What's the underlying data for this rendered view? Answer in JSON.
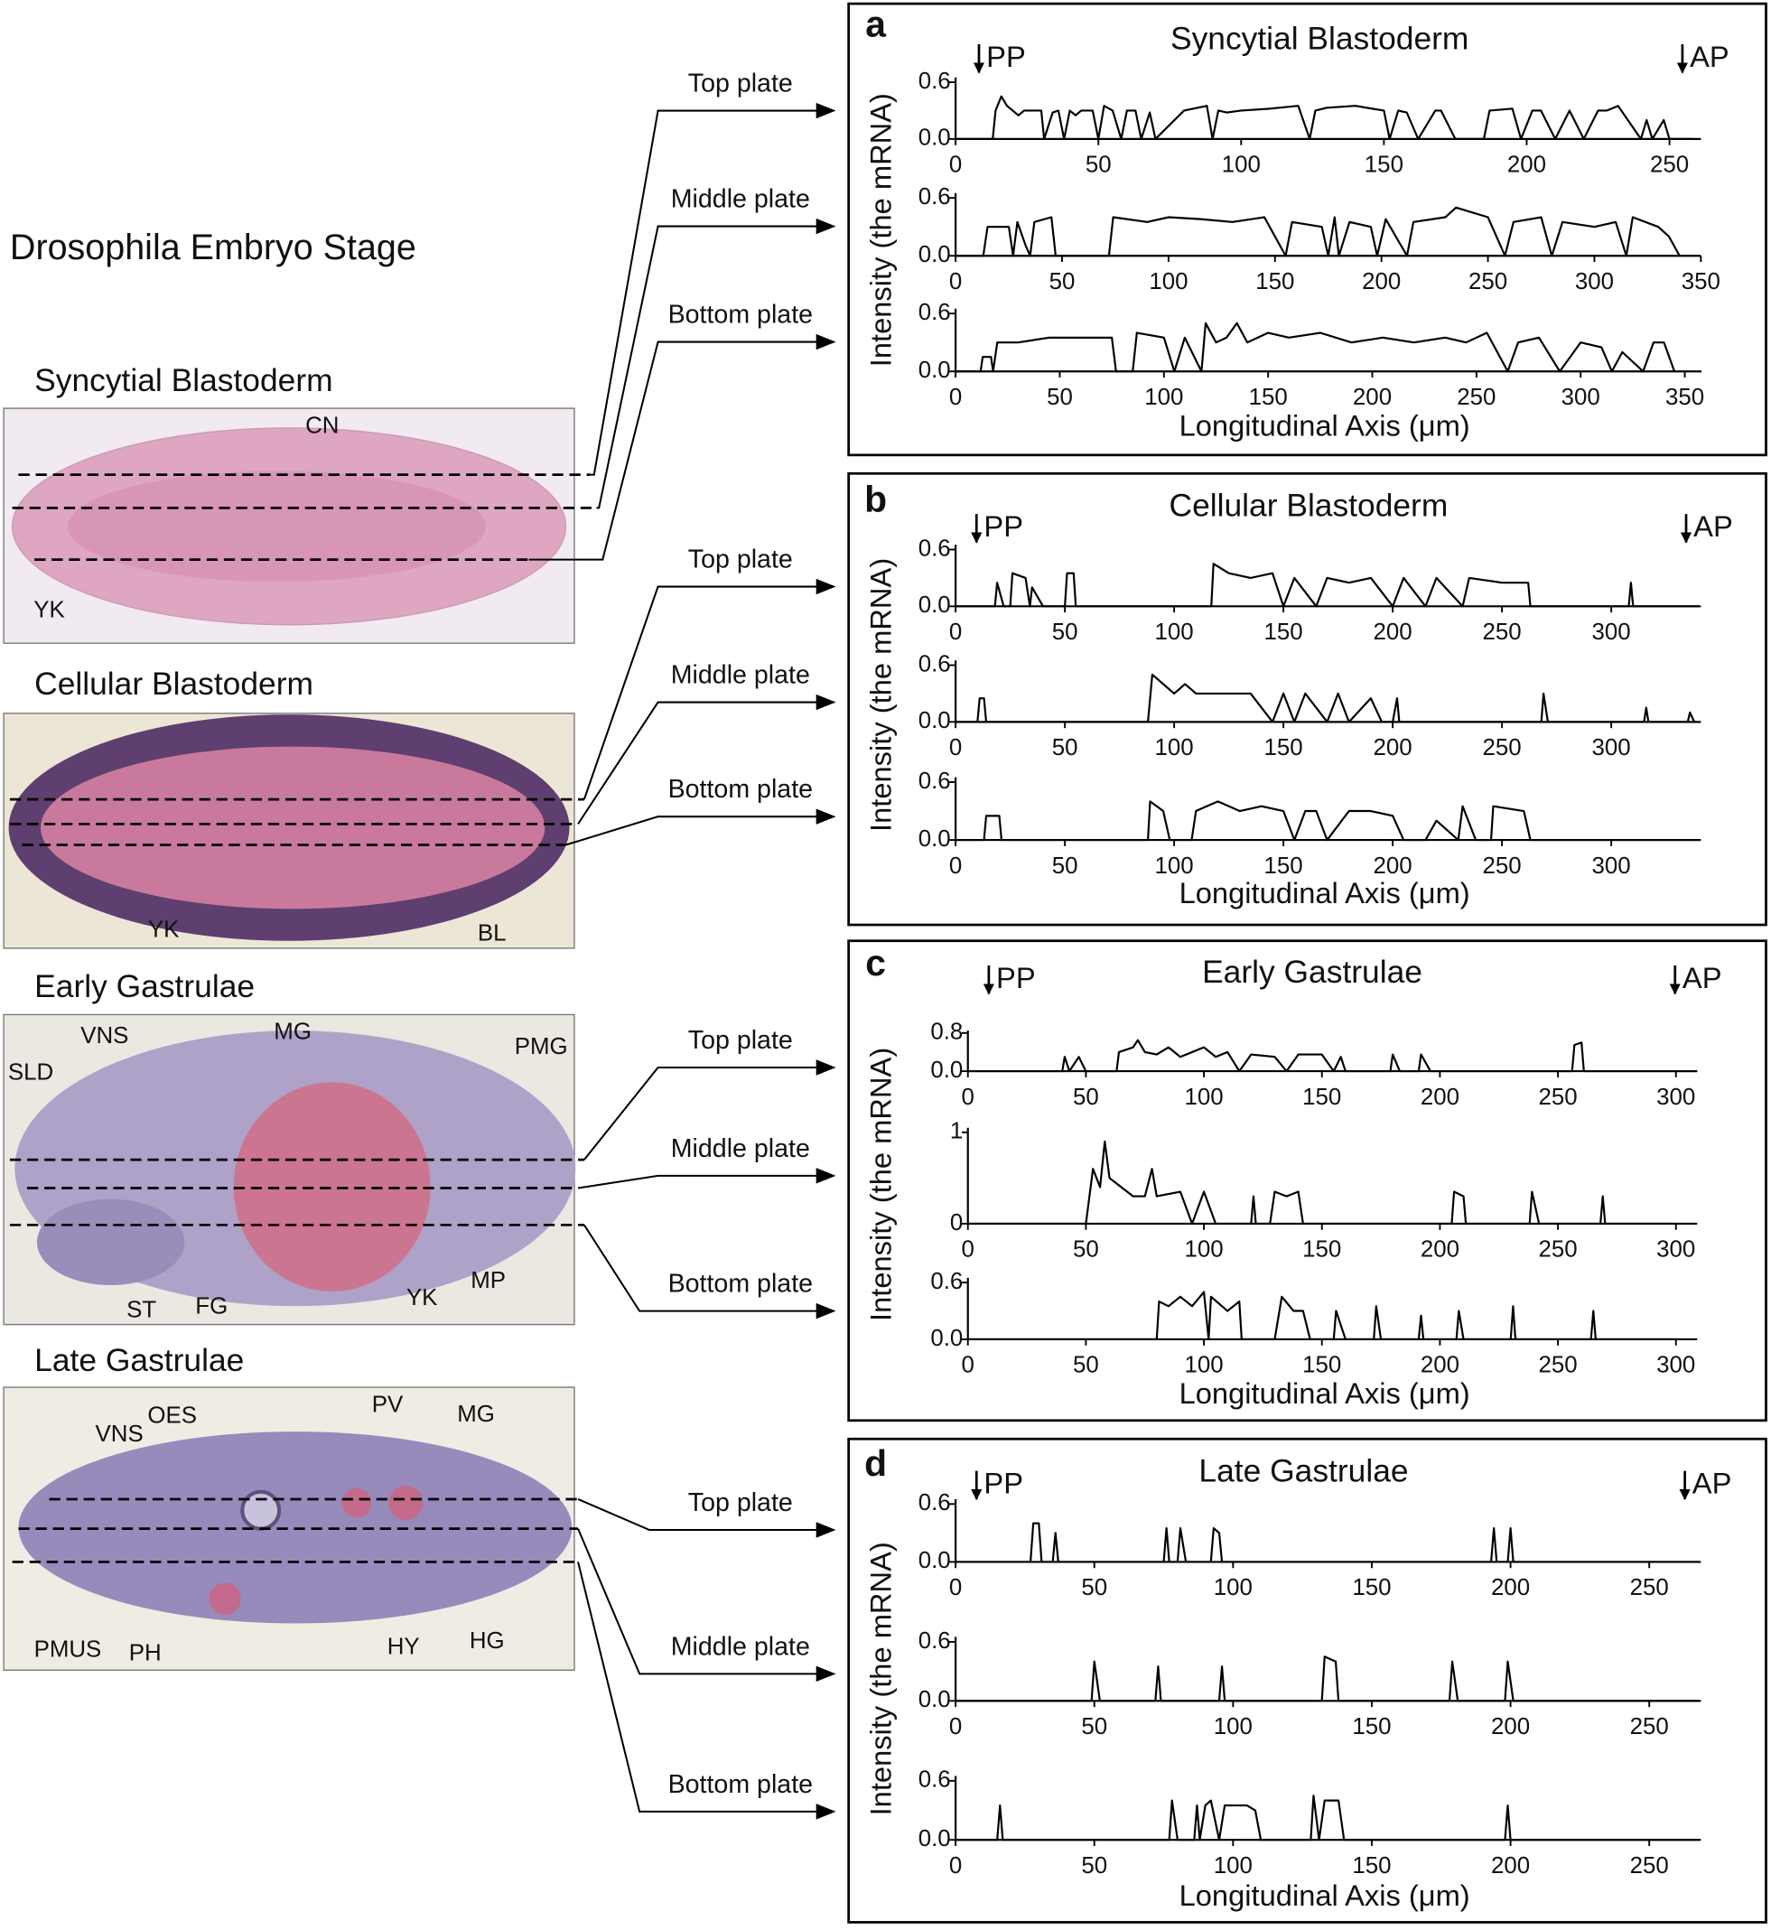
{
  "figure_title": "Drosophila Embryo Stage",
  "stages": [
    {
      "name": "Syncytial Blastoderm",
      "labels": [
        "CN",
        "YK"
      ],
      "plates": [
        "Top plate",
        "Middle plate",
        "Bottom plate"
      ]
    },
    {
      "name": "Cellular Blastoderm",
      "labels": [
        "YK",
        "BL"
      ],
      "plates": [
        "Top plate",
        "Middle plate",
        "Bottom plate"
      ]
    },
    {
      "name": "Early Gastrulae",
      "labels": [
        "VNS",
        "MG",
        "PMG",
        "SLD",
        "ST",
        "FG",
        "YK",
        "MP"
      ],
      "plates": [
        "Top plate",
        "Middle plate",
        "Bottom plate"
      ]
    },
    {
      "name": "Late Gastrulae",
      "labels": [
        "VNS",
        "OES",
        "PV",
        "MG",
        "PMUS",
        "PH",
        "HY",
        "HG"
      ],
      "plates": [
        "Top plate",
        "Middle plate",
        "Bottom plate"
      ]
    }
  ],
  "panels": [
    {
      "letter": "a",
      "title": "Syncytial Blastoderm",
      "left_marker": "PP",
      "right_marker": "AP",
      "ylabel": "Intensity (the mRNA)",
      "xlabel": "Longitudinal Axis (μm)"
    },
    {
      "letter": "b",
      "title": "Cellular Blastoderm",
      "left_marker": "PP",
      "right_marker": "AP",
      "ylabel": "Intensity (the mRNA)",
      "xlabel": "Longitudinal Axis (μm)"
    },
    {
      "letter": "c",
      "title": "Early Gastrulae",
      "left_marker": "PP",
      "right_marker": "AP",
      "ylabel": "Intensity (the mRNA)",
      "xlabel": "Longitudinal Axis (μm)"
    },
    {
      "letter": "d",
      "title": "Late Gastrulae",
      "left_marker": "PP",
      "right_marker": "AP",
      "ylabel": "Intensity (the mRNA)",
      "xlabel": "Longitudinal Axis (μm)"
    }
  ],
  "chart_data": [
    {
      "type": "line",
      "color": "#000000",
      "xlim": [
        0,
        261
      ],
      "ylim": [
        0,
        0.65
      ],
      "xticks": [
        0,
        50,
        100,
        150,
        200,
        250
      ],
      "yticks": [
        {
          "value": 0,
          "label": "0.0"
        },
        0.6
      ],
      "x": [
        0,
        13,
        14,
        16,
        18,
        22,
        24,
        30,
        31,
        34,
        36,
        38,
        40,
        42,
        44,
        48,
        50,
        52,
        55,
        58,
        60,
        63,
        65,
        68,
        70,
        80,
        88,
        90,
        92,
        95,
        100,
        110,
        120,
        124,
        126,
        130,
        140,
        150,
        152,
        155,
        158,
        162,
        168,
        170,
        175,
        185,
        187,
        195,
        198,
        202,
        205,
        210,
        215,
        220,
        225,
        228,
        232,
        240,
        242,
        244,
        248,
        250,
        258
      ],
      "values": [
        0,
        0,
        0.3,
        0.45,
        0.35,
        0.25,
        0.3,
        0.3,
        0,
        0.28,
        0.3,
        0,
        0.3,
        0.25,
        0.3,
        0.3,
        0,
        0.35,
        0.3,
        0,
        0.3,
        0.3,
        0,
        0.28,
        0,
        0.3,
        0.35,
        0,
        0.3,
        0.28,
        0.3,
        0.32,
        0.35,
        0,
        0.3,
        0.33,
        0.35,
        0.3,
        0,
        0.3,
        0.28,
        0,
        0.3,
        0.3,
        0,
        0,
        0.3,
        0.32,
        0,
        0.3,
        0.3,
        0,
        0.3,
        0,
        0.3,
        0.3,
        0.35,
        0,
        0.2,
        0,
        0.2,
        0,
        0
      ]
    },
    {
      "type": "line",
      "color": "#000000",
      "xlim": [
        0,
        350
      ],
      "ylim": [
        0,
        0.65
      ],
      "xticks": [
        0,
        50,
        100,
        150,
        200,
        250,
        300,
        350
      ],
      "yticks": [
        {
          "value": 0,
          "label": "0.0"
        },
        0.6
      ],
      "x": [
        0,
        13,
        15,
        25,
        27,
        29,
        33,
        35,
        37,
        45,
        47,
        72,
        74,
        90,
        100,
        115,
        130,
        145,
        155,
        158,
        172,
        175,
        178,
        180,
        185,
        195,
        198,
        202,
        212,
        215,
        230,
        235,
        250,
        258,
        262,
        275,
        280,
        285,
        300,
        310,
        315,
        318,
        330,
        335,
        340
      ],
      "values": [
        0,
        0,
        0.3,
        0.3,
        0,
        0.35,
        0.1,
        0,
        0.35,
        0.4,
        0,
        0,
        0.4,
        0.35,
        0.4,
        0.38,
        0.35,
        0.4,
        0,
        0.35,
        0.3,
        0,
        0.4,
        0,
        0.35,
        0.3,
        0,
        0.38,
        0,
        0.35,
        0.4,
        0.5,
        0.4,
        0,
        0.35,
        0.4,
        0,
        0.35,
        0.3,
        0.35,
        0,
        0.4,
        0.3,
        0.2,
        0
      ]
    },
    {
      "type": "line",
      "color": "#000000",
      "xlim": [
        0,
        358
      ],
      "ylim": [
        0,
        0.65
      ],
      "xticks": [
        0,
        50,
        100,
        150,
        200,
        250,
        300,
        350
      ],
      "yticks": [
        {
          "value": 0,
          "label": "0.0"
        },
        0.6
      ],
      "x": [
        0,
        12,
        13,
        17,
        18,
        20,
        30,
        45,
        60,
        75,
        77,
        85,
        87,
        100,
        105,
        110,
        118,
        120,
        125,
        130,
        135,
        140,
        150,
        160,
        175,
        190,
        205,
        220,
        235,
        245,
        255,
        265,
        270,
        280,
        290,
        300,
        310,
        315,
        320,
        330,
        335,
        340,
        345
      ],
      "values": [
        0,
        0,
        0.15,
        0.15,
        0,
        0.3,
        0.3,
        0.35,
        0.35,
        0.35,
        0,
        0,
        0.4,
        0.35,
        0,
        0.35,
        0,
        0.5,
        0.3,
        0.35,
        0.5,
        0.3,
        0.4,
        0.35,
        0.4,
        0.3,
        0.35,
        0.3,
        0.35,
        0.3,
        0.4,
        0,
        0.3,
        0.35,
        0,
        0.3,
        0.25,
        0,
        0.2,
        0,
        0.3,
        0.3,
        0
      ]
    },
    {
      "type": "line",
      "color": "#000000",
      "xlim": [
        0,
        341
      ],
      "ylim": [
        0,
        0.65
      ],
      "xticks": [
        0,
        50,
        100,
        150,
        200,
        250,
        300
      ],
      "yticks": [
        {
          "value": 0,
          "label": "0.0"
        },
        0.6
      ],
      "x": [
        0,
        18,
        19,
        22,
        25,
        26,
        32,
        34,
        35,
        40,
        50,
        51,
        54,
        55,
        117,
        118,
        125,
        135,
        145,
        150,
        155,
        165,
        170,
        180,
        190,
        200,
        205,
        215,
        220,
        232,
        235,
        250,
        262,
        263,
        308,
        309,
        310,
        340
      ],
      "values": [
        0,
        0,
        0.25,
        0,
        0,
        0.35,
        0.3,
        0,
        0.2,
        0,
        0,
        0.35,
        0.35,
        0,
        0,
        0.45,
        0.35,
        0.3,
        0.35,
        0,
        0.3,
        0,
        0.3,
        0.25,
        0.3,
        0,
        0.3,
        0,
        0.3,
        0,
        0.3,
        0.25,
        0.25,
        0,
        0,
        0.25,
        0,
        0
      ]
    },
    {
      "type": "line",
      "color": "#000000",
      "xlim": [
        0,
        341
      ],
      "ylim": [
        0,
        0.65
      ],
      "xticks": [
        0,
        50,
        100,
        150,
        200,
        250,
        300
      ],
      "yticks": [
        {
          "value": 0,
          "label": "0.0"
        },
        0.6
      ],
      "x": [
        0,
        10,
        11,
        13,
        14,
        88,
        90,
        95,
        100,
        105,
        110,
        120,
        135,
        145,
        150,
        155,
        160,
        170,
        175,
        180,
        190,
        195,
        200,
        202,
        203,
        268,
        269,
        271,
        315,
        316,
        317,
        335,
        336,
        338
      ],
      "values": [
        0,
        0,
        0.25,
        0.25,
        0,
        0,
        0.5,
        0.4,
        0.3,
        0.4,
        0.3,
        0.3,
        0.3,
        0,
        0.3,
        0,
        0.3,
        0,
        0.3,
        0,
        0.25,
        0,
        0,
        0.25,
        0,
        0,
        0.3,
        0,
        0,
        0.15,
        0,
        0,
        0.1,
        0
      ]
    },
    {
      "type": "line",
      "color": "#000000",
      "xlim": [
        0,
        341
      ],
      "ylim": [
        0,
        0.65
      ],
      "xticks": [
        0,
        50,
        100,
        150,
        200,
        250,
        300
      ],
      "yticks": [
        {
          "value": 0,
          "label": "0.0"
        },
        0.6
      ],
      "x": [
        0,
        13,
        14,
        20,
        21,
        88,
        89,
        95,
        98,
        108,
        110,
        115,
        120,
        130,
        140,
        150,
        155,
        160,
        165,
        170,
        180,
        190,
        200,
        205,
        215,
        220,
        230,
        232,
        238,
        245,
        246,
        260,
        263,
        340
      ],
      "values": [
        0,
        0,
        0.25,
        0.25,
        0,
        0,
        0.4,
        0.3,
        0,
        0,
        0.3,
        0.35,
        0.4,
        0.3,
        0.35,
        0.3,
        0,
        0.3,
        0.3,
        0,
        0.3,
        0.3,
        0.25,
        0,
        0,
        0.2,
        0,
        0.35,
        0,
        0,
        0.35,
        0.3,
        0,
        0
      ]
    },
    {
      "type": "line",
      "color": "#000000",
      "xlim": [
        0,
        309
      ],
      "ylim": [
        0,
        0.85
      ],
      "xticks": [
        0,
        50,
        100,
        150,
        200,
        250,
        300
      ],
      "yticks": [
        {
          "value": 0,
          "label": "0.0"
        },
        0.8
      ],
      "x": [
        0,
        40,
        41,
        43,
        47,
        50,
        63,
        64,
        70,
        72,
        75,
        80,
        85,
        90,
        95,
        100,
        105,
        110,
        115,
        120,
        130,
        135,
        140,
        150,
        155,
        158,
        160,
        179,
        180,
        183,
        191,
        192,
        196,
        256,
        257,
        260,
        261,
        309
      ],
      "values": [
        0,
        0,
        0.3,
        0,
        0.3,
        0,
        0,
        0.4,
        0.5,
        0.65,
        0.4,
        0.35,
        0.5,
        0.3,
        0.4,
        0.5,
        0.3,
        0.4,
        0,
        0.35,
        0.3,
        0,
        0.35,
        0.35,
        0,
        0.3,
        0,
        0,
        0.35,
        0,
        0,
        0.35,
        0,
        0,
        0.55,
        0.6,
        0,
        0
      ]
    },
    {
      "type": "line",
      "color": "#000000",
      "xlim": [
        0,
        309
      ],
      "ylim": [
        0,
        1.05
      ],
      "xticks": [
        0,
        50,
        100,
        150,
        200,
        250,
        300
      ],
      "yticks": [
        0,
        1
      ],
      "x": [
        0,
        50,
        53,
        56,
        58,
        60,
        65,
        70,
        75,
        78,
        80,
        90,
        95,
        100,
        105,
        120,
        121,
        122,
        128,
        130,
        135,
        140,
        142,
        205,
        206,
        210,
        211,
        238,
        239,
        242,
        268,
        269,
        270,
        300
      ],
      "values": [
        0,
        0,
        0.6,
        0.4,
        0.9,
        0.5,
        0.4,
        0.3,
        0.3,
        0.6,
        0.3,
        0.35,
        0,
        0.35,
        0,
        0,
        0.3,
        0,
        0,
        0.35,
        0.3,
        0.35,
        0,
        0,
        0.35,
        0.3,
        0,
        0,
        0.35,
        0,
        0,
        0.3,
        0,
        0
      ]
    },
    {
      "type": "line",
      "color": "#000000",
      "xlim": [
        0,
        309
      ],
      "ylim": [
        0,
        0.65
      ],
      "xticks": [
        0,
        50,
        100,
        150,
        200,
        250,
        300
      ],
      "yticks": [
        {
          "value": 0,
          "label": "0.0"
        },
        0.6
      ],
      "x": [
        0,
        80,
        81,
        85,
        90,
        95,
        100,
        102,
        103,
        110,
        115,
        116,
        130,
        133,
        138,
        142,
        145,
        155,
        156,
        160,
        172,
        173,
        175,
        191,
        192,
        193,
        207,
        208,
        210,
        230,
        231,
        232,
        264,
        265,
        266,
        300
      ],
      "values": [
        0,
        0,
        0.4,
        0.35,
        0.45,
        0.35,
        0.5,
        0,
        0.45,
        0.3,
        0.4,
        0,
        0,
        0.45,
        0.3,
        0.3,
        0,
        0,
        0.3,
        0,
        0,
        0.35,
        0,
        0,
        0.25,
        0,
        0,
        0.3,
        0,
        0,
        0.35,
        0,
        0,
        0.3,
        0,
        0
      ]
    },
    {
      "type": "line",
      "color": "#000000",
      "xlim": [
        0,
        268.6
      ],
      "ylim": [
        0,
        0.65
      ],
      "xticks": [
        0,
        50,
        100,
        150,
        200,
        250
      ],
      "yticks": [
        {
          "value": 0,
          "label": "0.0"
        },
        0.6
      ],
      "x": [
        0,
        27,
        28,
        30,
        31,
        35,
        36,
        37,
        75,
        76,
        77,
        80,
        81,
        83,
        92,
        93,
        95,
        96,
        193,
        194,
        195,
        199,
        200,
        201,
        268
      ],
      "values": [
        0,
        0,
        0.4,
        0.4,
        0,
        0,
        0.3,
        0,
        0,
        0.35,
        0,
        0,
        0.35,
        0,
        0,
        0.35,
        0.3,
        0,
        0,
        0.35,
        0,
        0,
        0.35,
        0,
        0
      ]
    },
    {
      "type": "line",
      "color": "#000000",
      "xlim": [
        0,
        268.6
      ],
      "ylim": [
        0,
        0.65
      ],
      "xticks": [
        0,
        50,
        100,
        150,
        200,
        250
      ],
      "yticks": [
        {
          "value": 0,
          "label": "0.0"
        },
        0.6
      ],
      "x": [
        0,
        49,
        50,
        52,
        72,
        73,
        74,
        95,
        96,
        97,
        132,
        133,
        137,
        138,
        178,
        179,
        181,
        198,
        199,
        201,
        268
      ],
      "values": [
        0,
        0,
        0.4,
        0,
        0,
        0.35,
        0,
        0,
        0.35,
        0,
        0,
        0.45,
        0.4,
        0,
        0,
        0.4,
        0,
        0,
        0.4,
        0,
        0
      ]
    },
    {
      "type": "line",
      "color": "#000000",
      "xlim": [
        0,
        268.6
      ],
      "ylim": [
        0,
        0.65
      ],
      "xticks": [
        0,
        50,
        100,
        150,
        200,
        250
      ],
      "yticks": [
        {
          "value": 0,
          "label": "0.0"
        },
        0.6
      ],
      "x": [
        0,
        15,
        16,
        17,
        77,
        78,
        80,
        86,
        87,
        88,
        90,
        92,
        95,
        97,
        105,
        108,
        110,
        128,
        129,
        131,
        133,
        138,
        140,
        198,
        199,
        200,
        268
      ],
      "values": [
        0,
        0,
        0.35,
        0,
        0,
        0.4,
        0,
        0,
        0.35,
        0,
        0.35,
        0.4,
        0,
        0.35,
        0.35,
        0.3,
        0,
        0,
        0.45,
        0,
        0.4,
        0.4,
        0,
        0,
        0.35,
        0,
        0
      ]
    }
  ]
}
